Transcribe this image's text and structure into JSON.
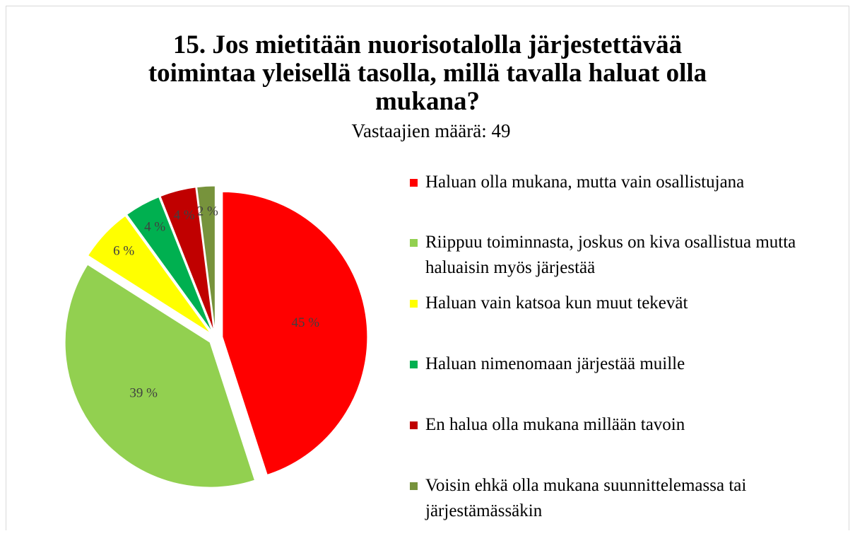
{
  "chart_data": {
    "type": "pie",
    "title": "15. Jos mietitään nuorisotalolla järjestettävää toimintaa yleisellä tasolla, millä tavalla haluat olla mukana?",
    "subtitle": "Vastaajien määrä: 49",
    "categories": [
      "Haluan olla mukana, mutta vain osallistujana",
      "Riippuu toiminnasta, joskus on kiva osallistua mutta haluaisin myös järjestää",
      "Haluan vain katsoa kun muut tekevät",
      "Haluan nimenomaan järjestää muille",
      "En halua olla mukana millään tavoin",
      "Voisin ehkä olla mukana suunnittelemassa tai järjestämässäkin"
    ],
    "values": [
      45,
      39,
      6,
      4,
      4,
      2
    ],
    "value_labels": [
      "45 %",
      "39 %",
      "6 %",
      "4 %",
      "4 %",
      "2 %"
    ],
    "colors": [
      "#ff0000",
      "#92d050",
      "#ffff00",
      "#00b050",
      "#c00000",
      "#77933c"
    ],
    "legend": "right"
  }
}
